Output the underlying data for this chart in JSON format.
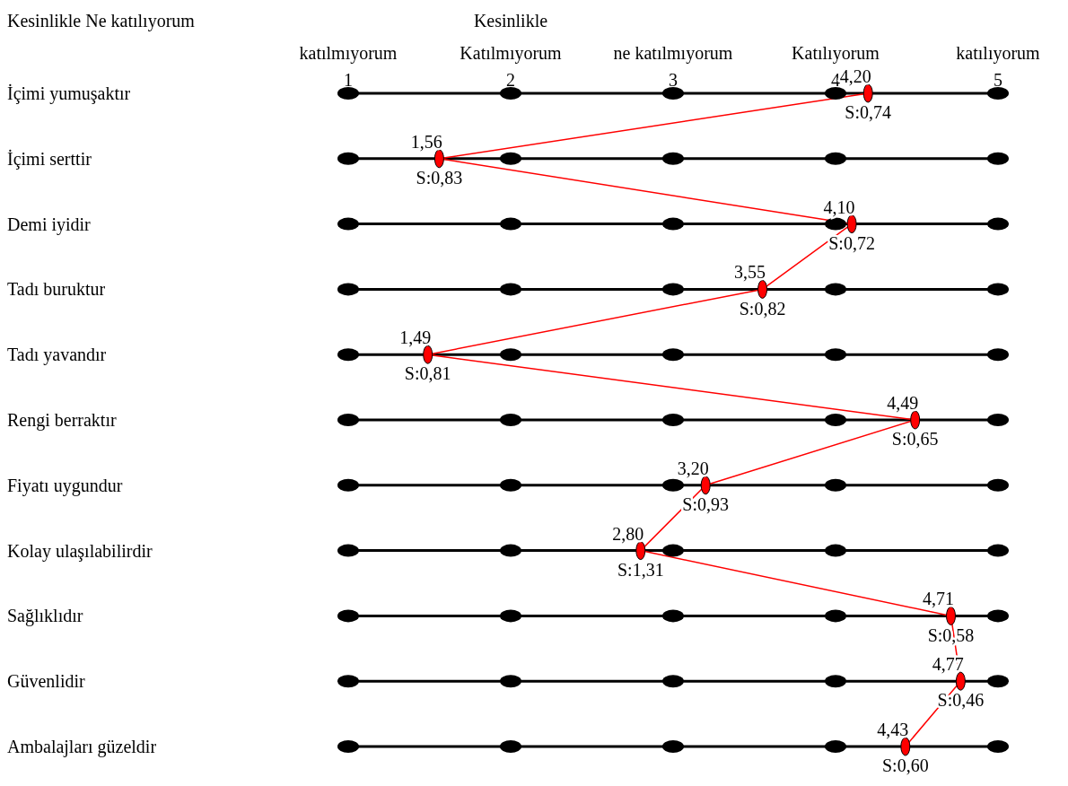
{
  "chart_data": {
    "type": "line",
    "categories": [
      "İçimi yumuşaktır",
      "İçimi serttir",
      "Demi iyidir",
      "Tadı buruktur",
      "Tadı yavandır",
      "Rengi berraktır",
      "Fiyatı uygundur",
      "Kolay ulaşılabilirdir",
      "Sağlıklıdır",
      "Güvenlidir",
      "Ambalajları güzeldir"
    ],
    "orientation": "horizontal",
    "series": [
      {
        "color": "#ff0000",
        "values": [
          4.2,
          1.56,
          4.1,
          3.55,
          1.49,
          4.49,
          3.2,
          2.8,
          4.71,
          4.77,
          4.43
        ],
        "value_labels": [
          "4,20",
          "1,56",
          "4,10",
          "3,55",
          "1,49",
          "4,49",
          "3,20",
          "2,80",
          "4,71",
          "4,77",
          "4,43"
        ]
      }
    ],
    "x2lim": [
      1,
      5
    ],
    "x2ticks": [
      1,
      2,
      3,
      4,
      5
    ],
    "grid": "y",
    "marker": "circle",
    "line_style": "solid",
    "annotations": [
      "Kesinlikle  Ne katılıyorum",
      "Kesinlikle",
      "katılmıyorum",
      "Katılmıyorum",
      "ne katılmıyorum",
      "Katılıyorum",
      "katılıyorum",
      {
        "text": "S:0,74",
        "x": 4.2,
        "y": "İçimi yumuşaktır"
      },
      {
        "text": "S:0,83",
        "x": 1.56,
        "y": "İçimi serttir"
      },
      {
        "text": "S:0,72",
        "x": 4.1,
        "y": "Demi iyidir"
      },
      {
        "text": "S:0,82",
        "x": 3.55,
        "y": "Tadı buruktur"
      },
      {
        "text": "S:0,81",
        "x": 1.49,
        "y": "Tadı yavandır"
      },
      {
        "text": "S:0,65",
        "x": 4.49,
        "y": "Rengi berraktır"
      },
      {
        "text": "S:0,93",
        "x": 3.2,
        "y": "Fiyatı uygundur"
      },
      {
        "text": "S:1,31",
        "x": 2.8,
        "y": "Kolay ulaşılabilirdir"
      },
      {
        "text": "S:0,58",
        "x": 4.71,
        "y": "Sağlıklıdır"
      },
      {
        "text": "S:0,46",
        "x": 4.77,
        "y": "Güvenlidir"
      },
      {
        "text": "S:0,60",
        "x": 4.43,
        "y": "Ambalajları güzeldir"
      }
    ]
  }
}
